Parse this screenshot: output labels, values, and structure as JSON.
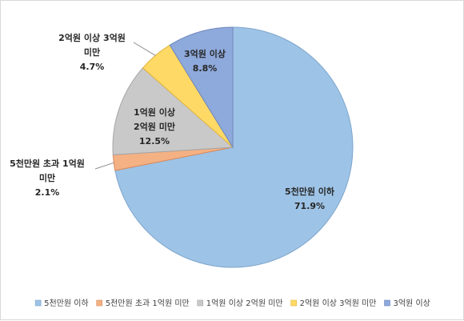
{
  "chart_data": {
    "type": "pie",
    "slices": [
      {
        "name": "5천만원 이하",
        "value": 71.9,
        "label_lines": [
          "5천만원 이하",
          "71.9%"
        ],
        "legend_label": "5천만원 이하",
        "color": "#9dc3e6",
        "border": "#7fa6cc"
      },
      {
        "name": "5천만원 초과 1억원 미만",
        "value": 2.1,
        "label_lines": [
          "5천만원 초과 1억원",
          "미만",
          "2.1%"
        ],
        "legend_label": "5천만원 초과 1억원 미만",
        "color": "#f4b183",
        "border": "#d98a5c"
      },
      {
        "name": "1억원 이상 2억원 미만",
        "value": 12.5,
        "label_lines": [
          "1억원 이상",
          "2억원 미만",
          "12.5%"
        ],
        "legend_label": "1억원 이상 2억원 미만",
        "color": "#c9c9c9",
        "border": "#a6a6a6"
      },
      {
        "name": "2억원 이상 3억원 미만",
        "value": 4.7,
        "label_lines": [
          "2억원 이상 3억원",
          "미만",
          "4.7%"
        ],
        "legend_label": "2억원 이상 3억원 미만",
        "color": "#ffd966",
        "border": "#e0b43c"
      },
      {
        "name": "3억원 이상",
        "value": 8.8,
        "label_lines": [
          "3억원 이상",
          "8.8%"
        ],
        "legend_label": "3억원 이상",
        "color": "#8ea9db",
        "border": "#6d87bd"
      }
    ],
    "start_angle_deg": 0,
    "direction": "clockwise",
    "legend_position": "bottom"
  }
}
